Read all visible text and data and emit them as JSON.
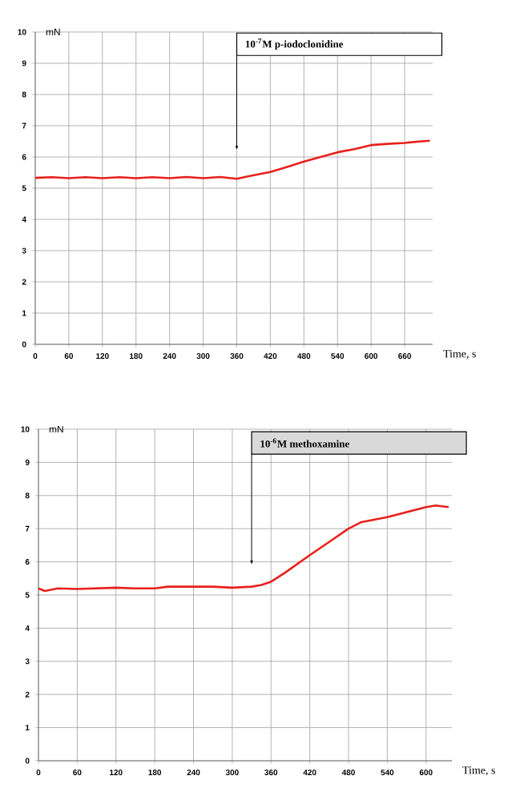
{
  "chart_data": [
    {
      "type": "line",
      "xlabel": "Time, s",
      "ylabel": "mN",
      "xlim": [
        0,
        710
      ],
      "ylim": [
        0,
        10
      ],
      "xticks": [
        0,
        60,
        120,
        180,
        240,
        300,
        360,
        420,
        480,
        540,
        600,
        660
      ],
      "yticks": [
        0,
        1,
        2,
        3,
        4,
        5,
        6,
        7,
        8,
        9,
        10
      ],
      "grid": true,
      "x": [
        0,
        30,
        60,
        90,
        120,
        150,
        180,
        210,
        240,
        270,
        300,
        330,
        360,
        380,
        400,
        420,
        450,
        480,
        510,
        540,
        570,
        600,
        630,
        660,
        690,
        705
      ],
      "series": [
        {
          "color": "#e8201c",
          "values": [
            5.33,
            5.35,
            5.32,
            5.35,
            5.32,
            5.35,
            5.32,
            5.35,
            5.32,
            5.36,
            5.32,
            5.36,
            5.3,
            5.38,
            5.45,
            5.52,
            5.68,
            5.85,
            6.0,
            6.15,
            6.25,
            6.38,
            6.42,
            6.45,
            6.5,
            6.52
          ]
        }
      ],
      "annotations": [
        {
          "text": "10$^{-7}$M    p-iodoclonidine",
          "x": 360,
          "y": 6.2
        }
      ]
    },
    {
      "type": "line",
      "xlabel": "Time, s",
      "ylabel": "mN",
      "xlim": [
        0,
        640
      ],
      "ylim": [
        0,
        10
      ],
      "xticks": [
        0,
        60,
        120,
        180,
        240,
        300,
        360,
        420,
        480,
        540,
        600
      ],
      "yticks": [
        0,
        1,
        2,
        3,
        4,
        5,
        6,
        7,
        8,
        9,
        10
      ],
      "grid": true,
      "x": [
        0,
        10,
        30,
        60,
        90,
        120,
        150,
        180,
        200,
        240,
        270,
        300,
        330,
        345,
        360,
        380,
        420,
        450,
        480,
        500,
        540,
        570,
        600,
        615,
        635
      ],
      "series": [
        {
          "color": "#e8201c",
          "values": [
            5.2,
            5.12,
            5.2,
            5.18,
            5.2,
            5.22,
            5.2,
            5.2,
            5.25,
            5.25,
            5.25,
            5.22,
            5.25,
            5.3,
            5.4,
            5.65,
            6.2,
            6.6,
            7.0,
            7.2,
            7.35,
            7.5,
            7.65,
            7.7,
            7.65
          ]
        }
      ],
      "annotations": [
        {
          "text": "10$^{-6}$M    methoxamine",
          "x": 330,
          "y": 5.9
        }
      ]
    }
  ]
}
